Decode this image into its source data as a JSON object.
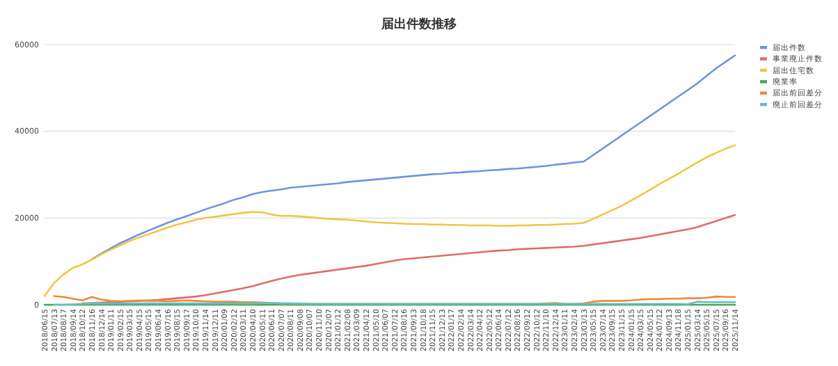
{
  "chart_data": {
    "type": "line",
    "title": "届出件数推移",
    "categories": [
      "2018/06/15",
      "2018/07/13",
      "2018/08/17",
      "2018/09/14",
      "2018/10/12",
      "2018/11/16",
      "2018/12/14",
      "2019/01/11",
      "2019/02/15",
      "2019/03/15",
      "2019/04/15",
      "2019/05/15",
      "2019/06/14",
      "2019/07/16",
      "2019/08/15",
      "2019/09/17",
      "2019/10/10",
      "2019/11/14",
      "2019/12/11",
      "2020/01/09",
      "2020/02/12",
      "2020/03/11",
      "2020/04/10",
      "2020/05/11",
      "2020/06/11",
      "2020/07/07",
      "2020/08/11",
      "2020/09/08",
      "2020/10/07",
      "2020/11/10",
      "2020/12/07",
      "2021/01/12",
      "2021/02/08",
      "2021/03/09",
      "2021/04/12",
      "2021/05/10",
      "2021/06/07",
      "2021/07/12",
      "2021/08/16",
      "2021/09/13",
      "2021/10/18",
      "2021/11/15",
      "2021/12/13",
      "2022/01/17",
      "2022/02/14",
      "2022/03/14",
      "2022/04/12",
      "2022/05/12",
      "2022/06/14",
      "2022/07/12",
      "2022/08/16",
      "2022/09/12",
      "2022/10/12",
      "2022/11/10",
      "2022/12/14",
      "2023/01/11",
      "2023/02/14",
      "2023/03/13",
      "2023/05/15",
      "2023/07/14",
      "2023/09/15",
      "2023/11/15",
      "2024/01/15",
      "2024/03/15",
      "2024/05/15",
      "2024/07/12",
      "2024/09/13",
      "2024/11/18",
      "2025/01/15",
      "2025/03/14",
      "2025/05/15",
      "2025/07/15",
      "2025/09/16",
      "2025/11/14"
    ],
    "series": [
      {
        "name": "届出件数",
        "color": "#6d95e0",
        "values": [
          null,
          null,
          null,
          null,
          null,
          10500,
          11800,
          13000,
          14200,
          15200,
          16200,
          17100,
          18000,
          18900,
          19700,
          20400,
          21200,
          22000,
          22700,
          23400,
          24200,
          24800,
          25500,
          26000,
          26300,
          26600,
          27000,
          27200,
          27400,
          27600,
          27800,
          28000,
          28300,
          28500,
          28700,
          28900,
          29100,
          29300,
          29500,
          29700,
          29900,
          30100,
          30200,
          30400,
          30500,
          30700,
          30800,
          31000,
          31100,
          31300,
          31400,
          31600,
          31800,
          32000,
          32300,
          32500,
          32800,
          33000,
          34500,
          36000,
          37500,
          39000,
          40500,
          42000,
          43500,
          45000,
          46500,
          48000,
          49500,
          51000,
          52800,
          54500,
          56000,
          57500
        ]
      },
      {
        "name": "事業廃止件数",
        "color": "#e06c66",
        "values": [
          null,
          null,
          null,
          null,
          300,
          400,
          500,
          600,
          700,
          800,
          900,
          1000,
          1100,
          1300,
          1500,
          1700,
          1900,
          2200,
          2600,
          3000,
          3400,
          3800,
          4300,
          4900,
          5500,
          6000,
          6500,
          6900,
          7200,
          7500,
          7800,
          8100,
          8400,
          8700,
          9000,
          9400,
          9800,
          10200,
          10500,
          10700,
          10900,
          11100,
          11300,
          11500,
          11700,
          11900,
          12100,
          12300,
          12500,
          12600,
          12800,
          12900,
          13000,
          13100,
          13200,
          13300,
          13400,
          13600,
          13900,
          14200,
          14500,
          14800,
          15100,
          15400,
          15800,
          16200,
          16600,
          17000,
          17400,
          17900,
          18600,
          19300,
          20000,
          20700
        ]
      },
      {
        "name": "届出住宅数",
        "color": "#f3c443",
        "values": [
          2000,
          5000,
          7000,
          8500,
          9300,
          10400,
          11600,
          12700,
          13700,
          14700,
          15500,
          16300,
          17000,
          17800,
          18500,
          19000,
          19600,
          20000,
          20300,
          20600,
          20900,
          21200,
          21400,
          21300,
          20800,
          20500,
          20500,
          20400,
          20200,
          20000,
          19800,
          19700,
          19600,
          19400,
          19200,
          19000,
          18900,
          18800,
          18700,
          18600,
          18600,
          18500,
          18500,
          18400,
          18400,
          18300,
          18300,
          18300,
          18200,
          18200,
          18300,
          18300,
          18400,
          18400,
          18500,
          18600,
          18700,
          18900,
          19800,
          20800,
          21800,
          22800,
          24000,
          25200,
          26500,
          27800,
          29000,
          30200,
          31500,
          32800,
          34000,
          35000,
          36000,
          36800
        ]
      },
      {
        "name": "廃業率",
        "color": "#4aa35c",
        "values": [
          0,
          0,
          0,
          0,
          0,
          0,
          0,
          0,
          0,
          0,
          0,
          0,
          0,
          0,
          0,
          0,
          0,
          0,
          0,
          0,
          0,
          0,
          0,
          0,
          0,
          0,
          0,
          0,
          0,
          0,
          0,
          0,
          0,
          0,
          0,
          0,
          0,
          0,
          0,
          0,
          0,
          0,
          0,
          0,
          0,
          0,
          0,
          0,
          0,
          0,
          0,
          0,
          0,
          0,
          0,
          0,
          0,
          0,
          0,
          0,
          0,
          0,
          0,
          0,
          0,
          0,
          0,
          0,
          0,
          0,
          0,
          0,
          0,
          0
        ]
      },
      {
        "name": "届出前回差分",
        "color": "#f3883b",
        "values": [
          null,
          2000,
          1800,
          1400,
          1000,
          1800,
          1200,
          900,
          800,
          900,
          1000,
          900,
          900,
          800,
          900,
          1000,
          900,
          800,
          700,
          700,
          700,
          600,
          600,
          500,
          400,
          300,
          300,
          200,
          200,
          200,
          200,
          200,
          200,
          200,
          200,
          200,
          200,
          200,
          200,
          200,
          200,
          200,
          200,
          200,
          200,
          200,
          200,
          200,
          200,
          200,
          200,
          200,
          200,
          300,
          400,
          200,
          200,
          300,
          700,
          900,
          900,
          900,
          1000,
          1200,
          1300,
          1300,
          1400,
          1400,
          1500,
          1500,
          1600,
          1900,
          1800,
          1800
        ]
      },
      {
        "name": "廃止前回差分",
        "color": "#5cc3bf",
        "values": [
          null,
          0,
          0,
          100,
          200,
          300,
          300,
          300,
          300,
          300,
          300,
          300,
          300,
          300,
          300,
          300,
          300,
          300,
          300,
          300,
          300,
          300,
          300,
          400,
          400,
          300,
          300,
          300,
          200,
          200,
          200,
          200,
          200,
          200,
          200,
          200,
          200,
          200,
          200,
          200,
          200,
          200,
          200,
          200,
          200,
          200,
          200,
          200,
          200,
          200,
          200,
          200,
          200,
          200,
          200,
          200,
          200,
          200,
          200,
          200,
          200,
          200,
          200,
          200,
          200,
          200,
          200,
          200,
          100,
          700,
          600,
          600,
          600,
          600
        ]
      }
    ],
    "ylim": [
      0,
      60000
    ],
    "yticks": [
      0,
      20000,
      40000,
      60000
    ],
    "grid": "y",
    "legend": "right",
    "marker": "none",
    "line_style": "solid"
  }
}
